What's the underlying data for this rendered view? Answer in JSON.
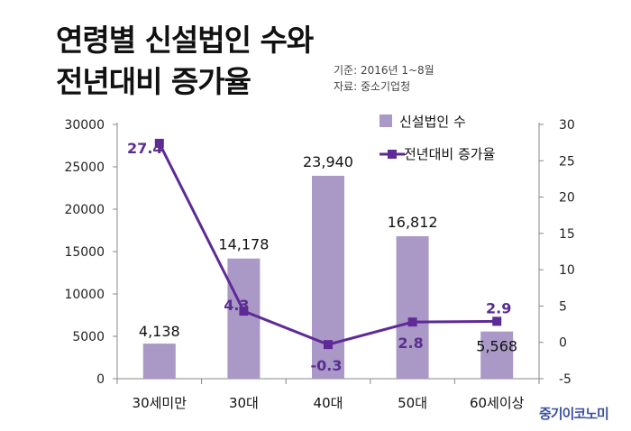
{
  "header": {
    "title_line1": "연령별 신설법인 수와",
    "title_line2": "전년대비 증가율",
    "period": "기준: 2016년 1~8월",
    "source": "자료: 중소기업청"
  },
  "brand": "중기이코노미",
  "colors": {
    "bar": "#aa99c6",
    "line": "#5e2a96"
  },
  "chart_data": {
    "type": "bar",
    "title": "연령별 신설법인 수와 전년대비 증가율",
    "categories": [
      "30세미만",
      "30대",
      "40대",
      "50대",
      "60세이상"
    ],
    "series": [
      {
        "name": "신설법인 수",
        "type": "bar",
        "axis": "left",
        "values": [
          4138,
          14178,
          23940,
          16812,
          5568
        ],
        "labels": [
          "4,138",
          "14,178",
          "23,940",
          "16,812",
          "5,568"
        ]
      },
      {
        "name": "전년대비 증가율",
        "type": "line",
        "axis": "right",
        "values": [
          27.4,
          4.3,
          -0.3,
          2.8,
          2.9
        ],
        "labels": [
          "27.4",
          "4.3",
          "-0.3",
          "2.8",
          "2.9"
        ]
      }
    ],
    "y_left": {
      "min": 0,
      "max": 30000,
      "ticks": [
        0,
        5000,
        10000,
        15000,
        20000,
        25000,
        30000
      ]
    },
    "y_right": {
      "min": -5,
      "max": 30,
      "ticks": [
        -5,
        0,
        5,
        10,
        15,
        20,
        25,
        30
      ]
    },
    "grid": false,
    "legend_position": "top-right"
  }
}
